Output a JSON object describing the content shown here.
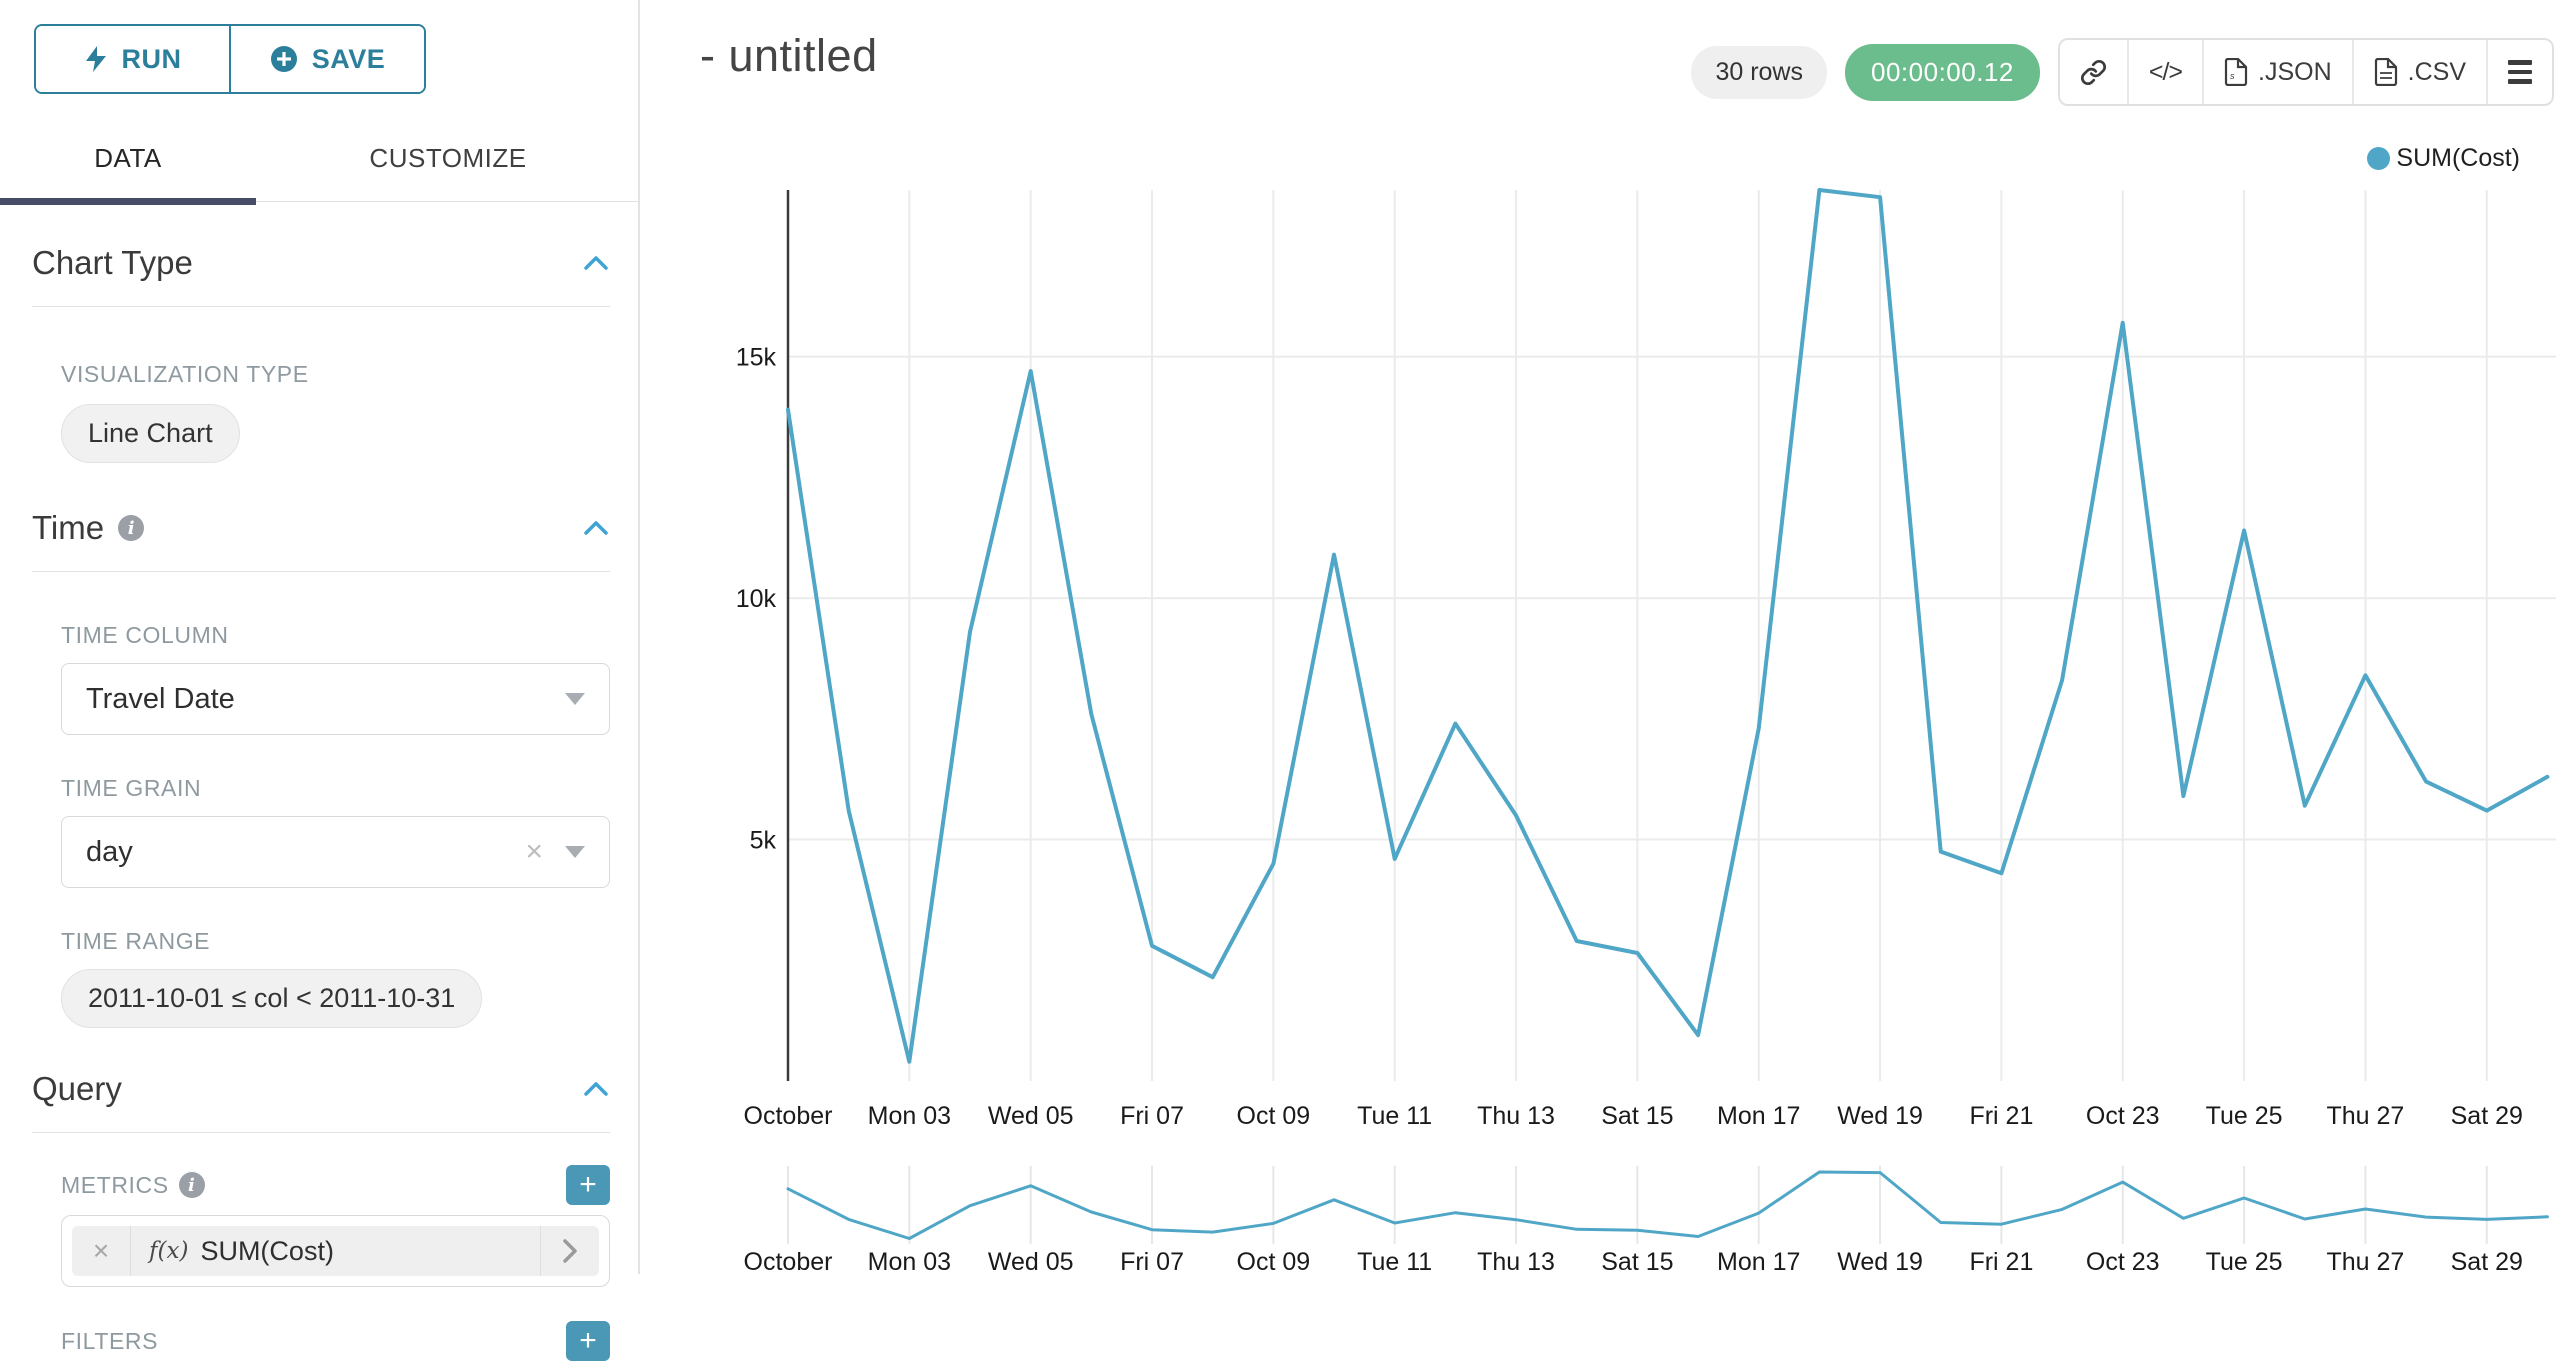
{
  "colors": {
    "accent": "#2b7f9b",
    "accent_bright": "#3fa3d3",
    "accent_soft": "#4a98b6",
    "line": "#4fa6c6",
    "timer_green": "#6cbd8d",
    "tab_underline": "#474d66"
  },
  "icons": {
    "run": "bolt-icon",
    "save": "plus-circle-icon",
    "section_toggle": "chevron-up-icon",
    "info": "info-icon",
    "select_caret": "caret-down-icon",
    "clear": "x-icon",
    "metric_expand": "chevron-right-icon",
    "share": "link-icon",
    "embed": "code-icon",
    "json": "file-icon",
    "csv": "file-icon",
    "menu": "hamburger-icon"
  },
  "sidebar": {
    "run_button": "RUN",
    "save_button": "SAVE",
    "tabs": {
      "data": "DATA",
      "customize": "CUSTOMIZE"
    },
    "chart_type_section": {
      "title": "Chart Type",
      "viz_label": "VISUALIZATION TYPE",
      "viz_value": "Line Chart"
    },
    "time_section": {
      "title": "Time",
      "column_label": "TIME COLUMN",
      "column_value": "Travel Date",
      "grain_label": "TIME GRAIN",
      "grain_value": "day",
      "range_label": "TIME RANGE",
      "range_value": "2011-10-01 ≤ col < 2011-10-31"
    },
    "query_section": {
      "title": "Query",
      "metrics_label": "METRICS",
      "metric_fx": "f(x)",
      "metric_value": "SUM(Cost)",
      "filters_label": "FILTERS"
    }
  },
  "header": {
    "title": "- untitled",
    "rows_badge": "30 rows",
    "timer_badge": "00:00:00.12",
    "json_button": ".JSON",
    "csv_button": ".CSV"
  },
  "chart_data": {
    "type": "line",
    "title": "",
    "xlabel": "",
    "ylabel": "",
    "legend_position": "top-right",
    "grid": true,
    "line_color": "#4fa6c6",
    "legend": [
      {
        "name": "SUM(Cost)",
        "color": "#4fa6c6"
      }
    ],
    "ylim": [
      0,
      18450
    ],
    "y_ticks": [
      {
        "value": 5000,
        "label": "5k"
      },
      {
        "value": 10000,
        "label": "10k"
      },
      {
        "value": 15000,
        "label": "15k"
      }
    ],
    "x": [
      "2011-10-01",
      "2011-10-02",
      "2011-10-03",
      "2011-10-04",
      "2011-10-05",
      "2011-10-06",
      "2011-10-07",
      "2011-10-08",
      "2011-10-09",
      "2011-10-10",
      "2011-10-11",
      "2011-10-12",
      "2011-10-13",
      "2011-10-14",
      "2011-10-15",
      "2011-10-16",
      "2011-10-17",
      "2011-10-18",
      "2011-10-19",
      "2011-10-20",
      "2011-10-21",
      "2011-10-22",
      "2011-10-23",
      "2011-10-24",
      "2011-10-25",
      "2011-10-26",
      "2011-10-27",
      "2011-10-28",
      "2011-10-29",
      "2011-10-30"
    ],
    "x_tick_labels": [
      "October",
      "Mon 03",
      "Wed 05",
      "Fri 07",
      "Oct 09",
      "Tue 11",
      "Thu 13",
      "Sat 15",
      "Mon 17",
      "Wed 19",
      "Fri 21",
      "Oct 23",
      "Tue 25",
      "Thu 27",
      "Sat 29"
    ],
    "x_tick_every": 2,
    "series": [
      {
        "name": "SUM(Cost)",
        "values": [
          13900,
          5600,
          400,
          9300,
          14700,
          7600,
          2800,
          2150,
          4500,
          10900,
          4600,
          7400,
          5500,
          2900,
          2650,
          950,
          7300,
          18450,
          18300,
          4750,
          4300,
          8300,
          15700,
          5900,
          11400,
          5700,
          8400,
          6200,
          5600,
          6300
        ]
      }
    ],
    "mini_chart": {
      "present": true,
      "same_series": true
    }
  }
}
